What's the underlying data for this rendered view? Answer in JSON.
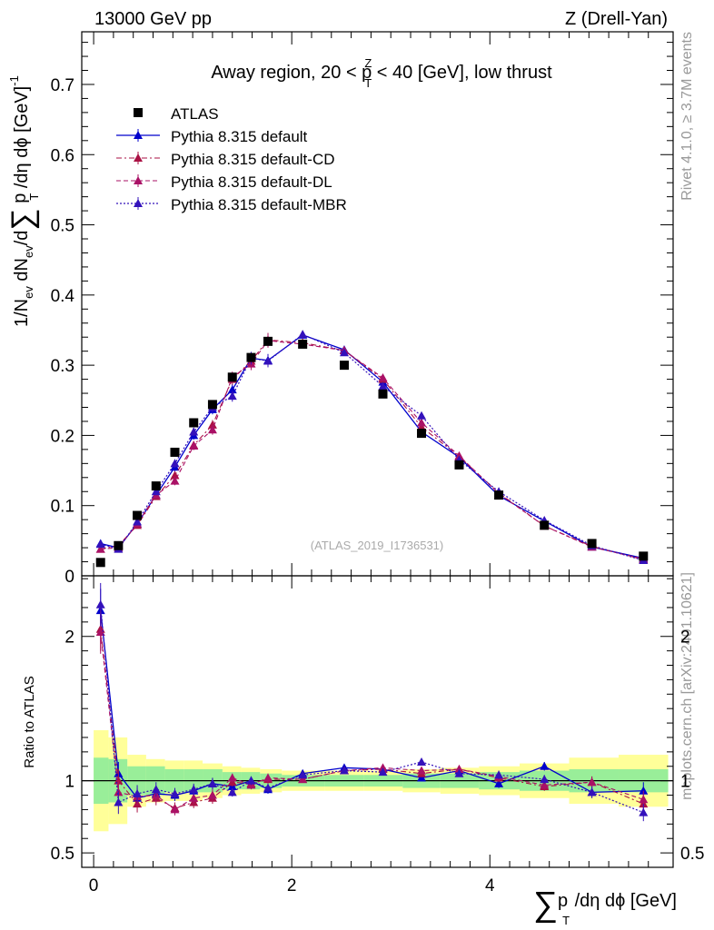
{
  "header": {
    "left": "13000 GeV pp",
    "right": "Z (Drell-Yan)"
  },
  "side_labels": {
    "rivet": "Rivet 4.1.0, ≥ 3.7M events",
    "mcplots": "mcplots.cern.ch [arXiv:2401.10621]"
  },
  "chart_data": {
    "type": "line",
    "title_parts": {
      "pre": "Away region, 20 < p",
      "sup": "Z",
      "sub": "T",
      "post": " < 40 [GeV], low thrust"
    },
    "watermark": "(ATLAS_2019_I1736531)",
    "ylabel_parts": {
      "a": "1/N",
      "a_sub": "ev",
      "b": " dN",
      "b_sub": "ev",
      "c": "/d",
      "sigma": "∑",
      "d": " p",
      "d_sub": "T",
      "e": " /dη dϕ  [GeV]",
      "e_sup": "-1"
    },
    "ratio_ylabel": "Ratio to ATLAS",
    "xlabel_parts": {
      "sigma": "∑",
      "a": "p",
      "a_sub": "T",
      "b": " /dη dϕ [GeV]"
    },
    "main_axis": {
      "xlim": [
        -0.12,
        5.85
      ],
      "ylim": [
        0,
        0.775
      ],
      "yticks": [
        0,
        0.1,
        0.2,
        0.3,
        0.4,
        0.5,
        0.6,
        0.7
      ],
      "ytick_labels": [
        "0",
        "0.1",
        "0.2",
        "0.3",
        "0.4",
        "0.5",
        "0.6",
        "0.7"
      ]
    },
    "ratio_axis": {
      "ylim": [
        0.4,
        2.42
      ],
      "yticks": [
        0.5,
        1,
        2
      ],
      "ytick_labels": [
        "0.5",
        "1",
        "2"
      ],
      "xticks": [
        0,
        2,
        4
      ],
      "xtick_labels": [
        "0",
        "2",
        "4"
      ]
    },
    "x": [
      0.07,
      0.25,
      0.44,
      0.63,
      0.82,
      1.01,
      1.2,
      1.4,
      1.59,
      1.76,
      2.11,
      2.53,
      2.92,
      3.31,
      3.69,
      4.09,
      4.55,
      5.03,
      5.55
    ],
    "x_edges": [
      0.0,
      0.15,
      0.34,
      0.53,
      0.72,
      0.91,
      1.1,
      1.3,
      1.49,
      1.68,
      1.9,
      2.33,
      2.73,
      3.12,
      3.5,
      3.89,
      4.3,
      4.8,
      5.3,
      5.8
    ],
    "legend": [
      "ATLAS",
      "Pythia 8.315 default",
      "Pythia 8.315 default-CD",
      "Pythia 8.315 default-DL",
      "Pythia 8.315 default-MBR"
    ],
    "data": {
      "name": "ATLAS",
      "values": [
        0.019,
        0.043,
        0.086,
        0.128,
        0.176,
        0.218,
        0.244,
        0.283,
        0.311,
        0.334,
        0.33,
        0.3,
        0.259,
        0.203,
        0.158,
        0.115,
        0.072,
        0.046,
        0.028
      ],
      "band_inner": [
        0.16,
        0.15,
        0.1,
        0.1,
        0.08,
        0.08,
        0.08,
        0.06,
        0.06,
        0.05,
        0.04,
        0.04,
        0.04,
        0.05,
        0.05,
        0.06,
        0.07,
        0.08,
        0.08
      ],
      "band_outer": [
        0.35,
        0.3,
        0.18,
        0.15,
        0.14,
        0.14,
        0.12,
        0.1,
        0.09,
        0.08,
        0.07,
        0.07,
        0.07,
        0.08,
        0.09,
        0.1,
        0.12,
        0.16,
        0.18
      ]
    },
    "series": [
      {
        "name": "Pythia 8.315 default",
        "color": "#0000cc",
        "dash": "",
        "width": 1.3,
        "values": [
          0.046,
          0.04,
          0.074,
          0.115,
          0.155,
          0.2,
          0.237,
          0.265,
          0.31,
          0.307,
          0.343,
          0.322,
          0.276,
          0.205,
          0.169,
          0.114,
          0.078,
          0.041,
          0.025
        ],
        "errors": [
          0.003,
          0.003,
          0.004,
          0.005,
          0.006,
          0.006,
          0.007,
          0.008,
          0.009,
          0.009,
          0.005,
          0.004,
          0.004,
          0.004,
          0.003,
          0.003,
          0.002,
          0.002,
          0.002
        ],
        "ratio": [
          2.18,
          1.05,
          0.88,
          0.91,
          0.9,
          0.93,
          0.98,
          0.96,
          1.0,
          0.94,
          1.05,
          1.09,
          1.08,
          1.02,
          1.07,
          0.98,
          1.1,
          0.92,
          0.93
        ],
        "ratio_err": [
          0.15,
          0.08,
          0.06,
          0.05,
          0.04,
          0.04,
          0.04,
          0.03,
          0.03,
          0.03,
          0.02,
          0.02,
          0.02,
          0.02,
          0.02,
          0.03,
          0.03,
          0.04,
          0.06
        ]
      },
      {
        "name": "Pythia 8.315 default-CD",
        "color": "#aa1144",
        "dash": "6,3,2,3",
        "width": 1.1,
        "values": [
          0.038,
          0.043,
          0.072,
          0.113,
          0.143,
          0.186,
          0.215,
          0.28,
          0.306,
          0.336,
          0.332,
          0.321,
          0.28,
          0.212,
          0.17,
          0.118,
          0.071,
          0.042,
          0.023
        ],
        "errors": [
          0.003,
          0.003,
          0.004,
          0.005,
          0.006,
          0.006,
          0.007,
          0.008,
          0.009,
          0.01,
          0.005,
          0.004,
          0.004,
          0.004,
          0.003,
          0.003,
          0.002,
          0.002,
          0.002
        ],
        "ratio": [
          2.05,
          1.0,
          0.84,
          0.88,
          0.81,
          0.85,
          0.88,
          0.99,
          0.98,
          1.01,
          1.01,
          1.07,
          1.08,
          1.05,
          1.08,
          1.02,
          0.96,
          0.99,
          0.84
        ],
        "ratio_err": [
          0.15,
          0.08,
          0.06,
          0.05,
          0.04,
          0.04,
          0.04,
          0.03,
          0.03,
          0.03,
          0.02,
          0.02,
          0.02,
          0.02,
          0.02,
          0.03,
          0.03,
          0.04,
          0.06
        ]
      },
      {
        "name": "Pythia 8.315 default-DL",
        "color": "#aa1166",
        "dash": "5,3",
        "width": 1.1,
        "values": [
          0.038,
          0.04,
          0.074,
          0.115,
          0.135,
          0.185,
          0.208,
          0.283,
          0.302,
          0.335,
          0.33,
          0.321,
          0.282,
          0.218,
          0.171,
          0.117,
          0.071,
          0.041,
          0.024
        ],
        "errors": [
          0.003,
          0.003,
          0.004,
          0.005,
          0.006,
          0.006,
          0.007,
          0.008,
          0.009,
          0.01,
          0.005,
          0.004,
          0.004,
          0.004,
          0.003,
          0.003,
          0.002,
          0.002,
          0.002
        ],
        "ratio": [
          2.03,
          0.92,
          0.89,
          0.9,
          0.8,
          0.88,
          0.9,
          1.02,
          0.97,
          1.02,
          1.01,
          1.07,
          1.09,
          1.07,
          1.08,
          1.03,
          0.97,
          0.99,
          0.87
        ],
        "ratio_err": [
          0.15,
          0.08,
          0.06,
          0.05,
          0.04,
          0.04,
          0.04,
          0.03,
          0.03,
          0.03,
          0.02,
          0.02,
          0.02,
          0.02,
          0.02,
          0.03,
          0.03,
          0.04,
          0.06
        ]
      },
      {
        "name": "Pythia 8.315 default-MBR",
        "color": "#3311bb",
        "dash": "2,2",
        "width": 1.2,
        "values": [
          0.045,
          0.038,
          0.077,
          0.12,
          0.16,
          0.205,
          0.24,
          0.256,
          0.31,
          0.306,
          0.344,
          0.318,
          0.27,
          0.228,
          0.165,
          0.12,
          0.079,
          0.043,
          0.022
        ],
        "errors": [
          0.003,
          0.003,
          0.004,
          0.005,
          0.006,
          0.006,
          0.007,
          0.008,
          0.009,
          0.009,
          0.005,
          0.004,
          0.004,
          0.004,
          0.003,
          0.003,
          0.002,
          0.002,
          0.002
        ],
        "ratio": [
          2.22,
          0.85,
          0.91,
          0.94,
          0.91,
          0.94,
          0.98,
          0.92,
          1.0,
          0.95,
          1.04,
          1.07,
          1.06,
          1.13,
          1.05,
          1.04,
          1.01,
          0.92,
          0.78
        ],
        "ratio_err": [
          0.15,
          0.08,
          0.06,
          0.05,
          0.04,
          0.04,
          0.04,
          0.03,
          0.03,
          0.03,
          0.02,
          0.02,
          0.02,
          0.02,
          0.02,
          0.03,
          0.03,
          0.04,
          0.06
        ]
      }
    ]
  }
}
